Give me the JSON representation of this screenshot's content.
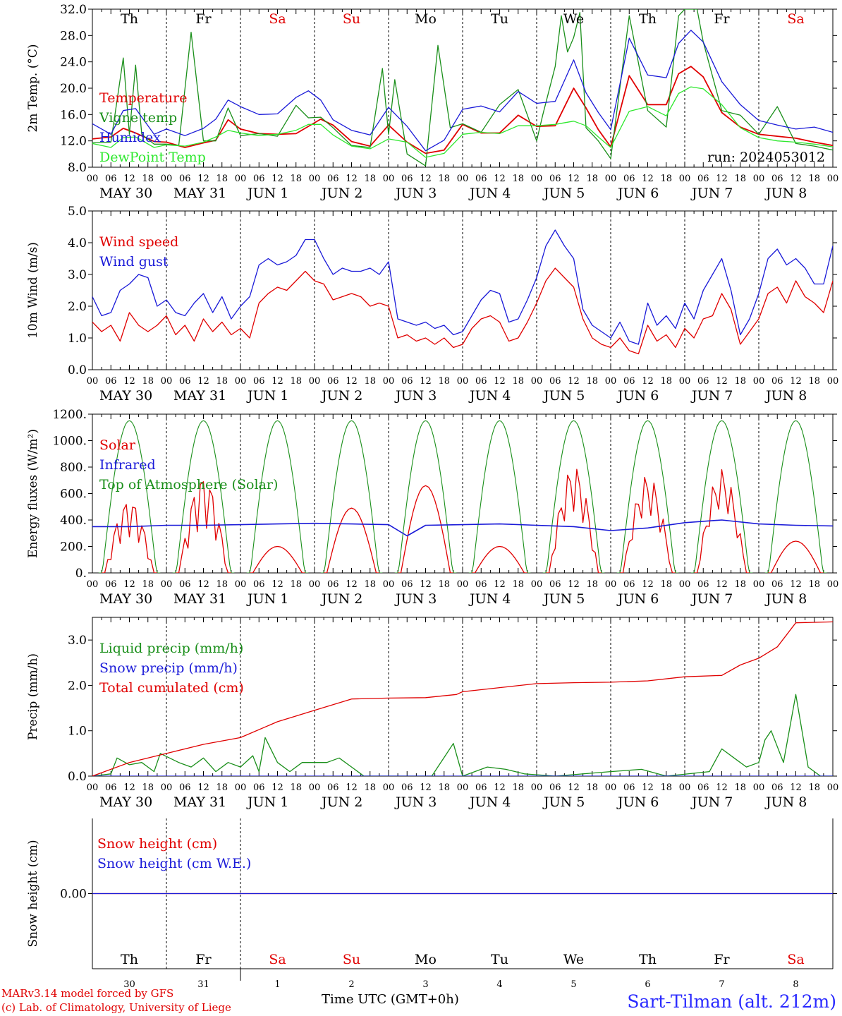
{
  "meta": {
    "run_label": "run: 2024053012",
    "x_axis_title": "Time UTC (GMT+0h)",
    "credit_line1": "MARv3.14 model forced by GFS",
    "credit_line2": "(c) Lab. of Climatology, University of Liege",
    "station": "Sart-Tilman (alt. 212m)",
    "hour_ticks": [
      "00",
      "06",
      "12",
      "18"
    ],
    "final_tick": "00",
    "dates": [
      "MAY 30",
      "MAY 31",
      "JUN  1",
      "JUN  2",
      "JUN  3",
      "JUN  4",
      "JUN  5",
      "JUN  6",
      "JUN  7",
      "JUN  8"
    ],
    "weekdays": [
      "Th",
      "Fr",
      "Sa",
      "Su",
      "Mo",
      "Tu",
      "We",
      "Th",
      "Fr",
      "Sa"
    ],
    "weekend_color": "#e00000",
    "weekday_color": "#000000",
    "day_numbers": [
      "30",
      "31",
      "1",
      "2",
      "3",
      "4",
      "5",
      "6",
      "7",
      "8"
    ]
  },
  "chart_data": [
    {
      "type": "line",
      "panel": "temperature",
      "ylabel": "2m Temp. (°C)",
      "ylim": [
        8,
        32
      ],
      "y_ticks": [
        "8.0",
        "12.0",
        "16.0",
        "20.0",
        "24.0",
        "28.0",
        "32.0"
      ],
      "x_unit": "hours since MAY 30 00 UTC",
      "series": [
        {
          "name": "Temperature",
          "color": "#e00000",
          "x": [
            0,
            6,
            10,
            14,
            20,
            24,
            30,
            36,
            40,
            44,
            48,
            54,
            60,
            66,
            70,
            74,
            78,
            84,
            90,
            96,
            102,
            108,
            114,
            120,
            126,
            132,
            138,
            144,
            150,
            156,
            160,
            164,
            168,
            174,
            180,
            186,
            190,
            194,
            198,
            204,
            210,
            216,
            222,
            228,
            234,
            240
          ],
          "y": [
            12.3,
            12.6,
            13.9,
            13.2,
            11.9,
            11.8,
            11.0,
            11.7,
            12.1,
            15.2,
            13.8,
            13.1,
            13.0,
            13.1,
            14.2,
            15.3,
            14.4,
            11.9,
            11.2,
            14.4,
            11.8,
            10.1,
            10.6,
            14.5,
            13.2,
            13.2,
            15.9,
            14.2,
            14.3,
            20.0,
            17.0,
            13.7,
            11.1,
            21.9,
            17.5,
            17.5,
            22.2,
            23.3,
            21.7,
            16.3,
            14.1,
            13.0,
            12.7,
            12.4,
            11.8,
            11.3
          ]
        },
        {
          "name": "Vigne temp",
          "color": "#1a8f1a",
          "x": [
            0,
            6,
            10,
            12,
            14,
            16,
            20,
            24,
            28,
            32,
            36,
            40,
            44,
            48,
            54,
            60,
            66,
            70,
            74,
            78,
            84,
            90,
            94,
            96,
            98,
            102,
            108,
            112,
            116,
            120,
            126,
            132,
            138,
            144,
            146,
            150,
            152,
            154,
            156,
            158,
            160,
            164,
            168,
            174,
            180,
            186,
            190,
            192,
            194,
            196,
            198,
            204,
            210,
            216,
            222,
            228,
            234,
            240
          ],
          "y": [
            11.7,
            11.8,
            24.6,
            13.0,
            23.5,
            13.0,
            11.5,
            11.5,
            11.3,
            28.5,
            12.0,
            12.0,
            17.0,
            12.8,
            13.1,
            12.7,
            17.4,
            15.5,
            15.6,
            14.0,
            11.3,
            11.0,
            23.0,
            13.0,
            21.3,
            10.0,
            8.2,
            26.5,
            14.0,
            14.6,
            13.3,
            17.5,
            19.8,
            12.0,
            16.0,
            23.3,
            31.0,
            25.5,
            27.7,
            31.5,
            14.0,
            12.0,
            9.3,
            31.0,
            16.6,
            14.1,
            31.0,
            32.0,
            32.0,
            32.0,
            27.0,
            16.6,
            15.9,
            13.0,
            17.2,
            11.6,
            11.2,
            10.6
          ]
        },
        {
          "name": "Humidex",
          "color": "#1a1ad8",
          "x": [
            0,
            6,
            10,
            14,
            20,
            24,
            30,
            36,
            40,
            44,
            48,
            54,
            60,
            66,
            70,
            74,
            78,
            84,
            90,
            96,
            102,
            108,
            114,
            120,
            126,
            132,
            138,
            144,
            150,
            156,
            160,
            164,
            168,
            174,
            180,
            186,
            190,
            194,
            198,
            204,
            210,
            216,
            222,
            228,
            234,
            240
          ],
          "y": [
            14.6,
            13.0,
            16.6,
            16.9,
            13.0,
            13.8,
            12.8,
            13.9,
            15.3,
            18.2,
            17.2,
            16.0,
            16.1,
            18.6,
            19.6,
            18.2,
            15.2,
            13.6,
            12.9,
            17.1,
            14.2,
            10.5,
            12.1,
            16.8,
            17.3,
            16.4,
            19.5,
            17.7,
            18.0,
            24.3,
            19.3,
            16.3,
            13.7,
            27.6,
            22.0,
            21.6,
            26.8,
            28.8,
            27.0,
            21.0,
            17.5,
            15.1,
            14.4,
            13.8,
            14.1,
            13.3
          ]
        },
        {
          "name": "DewPoint Temp",
          "color": "#2ee82e",
          "x": [
            0,
            6,
            10,
            14,
            20,
            24,
            30,
            36,
            40,
            44,
            48,
            54,
            60,
            66,
            70,
            74,
            78,
            84,
            90,
            96,
            102,
            108,
            114,
            120,
            126,
            132,
            138,
            144,
            150,
            156,
            160,
            164,
            168,
            174,
            180,
            186,
            190,
            194,
            198,
            204,
            210,
            216,
            222,
            228,
            234,
            240
          ],
          "y": [
            11.6,
            11.0,
            12.5,
            12.6,
            11.0,
            11.4,
            11.2,
            11.8,
            12.6,
            13.6,
            13.2,
            12.8,
            13.0,
            13.6,
            14.5,
            14.5,
            12.9,
            11.2,
            10.8,
            12.3,
            11.8,
            9.5,
            10.1,
            13.0,
            13.3,
            13.1,
            14.3,
            14.3,
            14.5,
            15.0,
            14.3,
            12.6,
            11.0,
            16.5,
            17.2,
            15.8,
            19.2,
            20.2,
            19.9,
            17.5,
            14.0,
            12.5,
            12.0,
            11.8,
            11.5,
            11.1
          ]
        }
      ]
    },
    {
      "type": "line",
      "panel": "wind",
      "ylabel": "10m Wind (m/s)",
      "ylim": [
        0,
        5
      ],
      "y_ticks": [
        "0.0",
        "1.0",
        "2.0",
        "3.0",
        "4.0",
        "5.0"
      ],
      "series": [
        {
          "name": "Wind speed",
          "color": "#e00000",
          "x": [
            0,
            3,
            6,
            9,
            12,
            15,
            18,
            21,
            24,
            27,
            30,
            33,
            36,
            39,
            42,
            45,
            48,
            51,
            54,
            57,
            60,
            63,
            66,
            69,
            72,
            75,
            78,
            81,
            84,
            87,
            90,
            93,
            96,
            99,
            102,
            105,
            108,
            111,
            114,
            117,
            120,
            123,
            126,
            129,
            132,
            135,
            138,
            141,
            144,
            147,
            150,
            153,
            156,
            159,
            162,
            165,
            168,
            171,
            174,
            177,
            180,
            183,
            186,
            189,
            192,
            195,
            198,
            201,
            204,
            207,
            210,
            213,
            216,
            219,
            222,
            225,
            228,
            231,
            234,
            237,
            240
          ],
          "y": [
            1.5,
            1.2,
            1.4,
            0.9,
            1.8,
            1.4,
            1.2,
            1.4,
            1.7,
            1.1,
            1.4,
            0.9,
            1.6,
            1.2,
            1.5,
            1.1,
            1.3,
            1.0,
            2.1,
            2.4,
            2.6,
            2.5,
            2.8,
            3.1,
            2.8,
            2.7,
            2.2,
            2.3,
            2.4,
            2.3,
            2.0,
            2.1,
            2.0,
            1.0,
            1.1,
            0.9,
            1.0,
            0.8,
            1.0,
            0.7,
            0.8,
            1.3,
            1.6,
            1.7,
            1.5,
            0.9,
            1.0,
            1.5,
            2.1,
            2.8,
            3.2,
            2.9,
            2.6,
            1.6,
            1.0,
            0.8,
            0.7,
            1.0,
            0.6,
            0.5,
            1.4,
            0.9,
            1.1,
            0.7,
            1.3,
            1.0,
            1.6,
            1.7,
            2.4,
            1.9,
            0.8,
            1.2,
            1.6,
            2.4,
            2.6,
            2.1,
            2.8,
            2.3,
            2.1,
            1.8,
            2.8
          ]
        },
        {
          "name": "Wind gust",
          "color": "#1a1ad8",
          "x": [
            0,
            3,
            6,
            9,
            12,
            15,
            18,
            21,
            24,
            27,
            30,
            33,
            36,
            39,
            42,
            45,
            48,
            51,
            54,
            57,
            60,
            63,
            66,
            69,
            72,
            75,
            78,
            81,
            84,
            87,
            90,
            93,
            96,
            99,
            102,
            105,
            108,
            111,
            114,
            117,
            120,
            123,
            126,
            129,
            132,
            135,
            138,
            141,
            144,
            147,
            150,
            153,
            156,
            159,
            162,
            165,
            168,
            171,
            174,
            177,
            180,
            183,
            186,
            189,
            192,
            195,
            198,
            201,
            204,
            207,
            210,
            213,
            216,
            219,
            222,
            225,
            228,
            231,
            234,
            237,
            240
          ],
          "y": [
            2.3,
            1.7,
            1.8,
            2.5,
            2.7,
            3.0,
            2.9,
            2.0,
            2.2,
            1.8,
            1.7,
            2.1,
            2.4,
            1.8,
            2.3,
            1.6,
            2.0,
            2.3,
            3.3,
            3.5,
            3.3,
            3.4,
            3.6,
            4.1,
            4.1,
            3.5,
            3.0,
            3.2,
            3.1,
            3.1,
            3.2,
            3.0,
            3.4,
            1.6,
            1.5,
            1.4,
            1.5,
            1.3,
            1.4,
            1.1,
            1.2,
            1.7,
            2.2,
            2.5,
            2.4,
            1.5,
            1.6,
            2.2,
            2.9,
            3.9,
            4.4,
            3.9,
            3.5,
            1.9,
            1.4,
            1.2,
            1.0,
            1.5,
            0.9,
            0.8,
            2.1,
            1.4,
            1.7,
            1.3,
            2.1,
            1.6,
            2.5,
            3.0,
            3.5,
            2.5,
            1.1,
            1.6,
            2.4,
            3.5,
            3.8,
            3.3,
            3.5,
            3.2,
            2.7,
            2.7,
            3.9
          ]
        }
      ]
    },
    {
      "type": "line",
      "panel": "energy",
      "ylabel": "Energy fluxes (W/m²)",
      "ylim": [
        0,
        1200
      ],
      "y_ticks": [
        "0.",
        "200.",
        "400.",
        "600.",
        "800.",
        "1000.",
        "1200."
      ],
      "series": [
        {
          "name": "Solar",
          "color": "#e00000",
          "peaks": [
            560,
            740,
            200,
            490,
            660,
            200,
            820,
            750,
            790,
            240
          ]
        },
        {
          "name": "Infrared",
          "color": "#1a1ad8",
          "x": [
            0,
            12,
            24,
            36,
            48,
            60,
            72,
            84,
            96,
            102,
            108,
            120,
            132,
            144,
            156,
            168,
            180,
            192,
            204,
            216,
            228,
            240
          ],
          "y": [
            350,
            350,
            360,
            360,
            365,
            370,
            375,
            370,
            365,
            280,
            360,
            365,
            370,
            360,
            350,
            320,
            340,
            380,
            400,
            370,
            360,
            355
          ]
        },
        {
          "name": "Top of Atmosphere (Solar)",
          "color": "#1a8f1a",
          "daily_peak": 1150
        }
      ]
    },
    {
      "type": "line",
      "panel": "precip",
      "ylabel": "Precip (mm/h)",
      "ylim": [
        0,
        3.5
      ],
      "y_ticks": [
        "0.0",
        "1.0",
        "2.0",
        "3.0"
      ],
      "series": [
        {
          "name": "Liquid precip (mm/h)",
          "color": "#1a8f1a",
          "x": [
            0,
            6,
            8,
            12,
            16,
            20,
            22,
            28,
            32,
            36,
            40,
            44,
            48,
            52,
            54,
            56,
            60,
            64,
            68,
            72,
            76,
            80,
            84,
            88,
            96,
            110,
            117,
            120,
            128,
            134,
            140,
            150,
            168,
            178,
            186,
            200,
            204,
            208,
            212,
            216,
            218,
            220,
            224,
            228,
            232,
            236,
            240
          ],
          "y": [
            0,
            0.05,
            0.4,
            0.25,
            0.3,
            0.1,
            0.5,
            0.3,
            0.2,
            0.4,
            0.1,
            0.3,
            0.2,
            0.45,
            0.1,
            0.85,
            0.3,
            0.1,
            0.3,
            0.3,
            0.3,
            0.4,
            0.2,
            0,
            0,
            0,
            0.72,
            0,
            0.2,
            0.15,
            0.05,
            0,
            0.1,
            0.15,
            0,
            0.1,
            0.6,
            0.4,
            0.2,
            0.3,
            0.8,
            1.0,
            0.3,
            1.8,
            0.2,
            0,
            0
          ]
        },
        {
          "name": "Snow precip (mm/h)",
          "color": "#1a1ad8",
          "x": [
            0,
            240
          ],
          "y": [
            0,
            0
          ]
        },
        {
          "name": "Total cumulated (cm)",
          "color": "#e00000",
          "x": [
            0,
            12,
            24,
            36,
            48,
            60,
            72,
            84,
            96,
            108,
            118,
            120,
            132,
            144,
            156,
            168,
            180,
            192,
            204,
            210,
            216,
            222,
            228,
            240
          ],
          "y": [
            0,
            0.3,
            0.5,
            0.7,
            0.85,
            1.2,
            1.45,
            1.7,
            1.72,
            1.73,
            1.8,
            1.86,
            1.95,
            2.04,
            2.06,
            2.07,
            2.1,
            2.19,
            2.22,
            2.45,
            2.6,
            2.85,
            3.38,
            3.4
          ]
        }
      ]
    },
    {
      "type": "line",
      "panel": "snow",
      "ylabel": "Snow height (cm)",
      "ylim": [
        -1,
        1
      ],
      "y_ticks": [
        "0.00"
      ],
      "series": [
        {
          "name": "Snow height (cm)",
          "color": "#e00000",
          "x": [
            0,
            240
          ],
          "y": [
            0,
            0
          ]
        },
        {
          "name": "Snow height (cm W.E.)",
          "color": "#1a1ad8",
          "x": [
            0,
            240
          ],
          "y": [
            0,
            0
          ]
        }
      ]
    }
  ]
}
